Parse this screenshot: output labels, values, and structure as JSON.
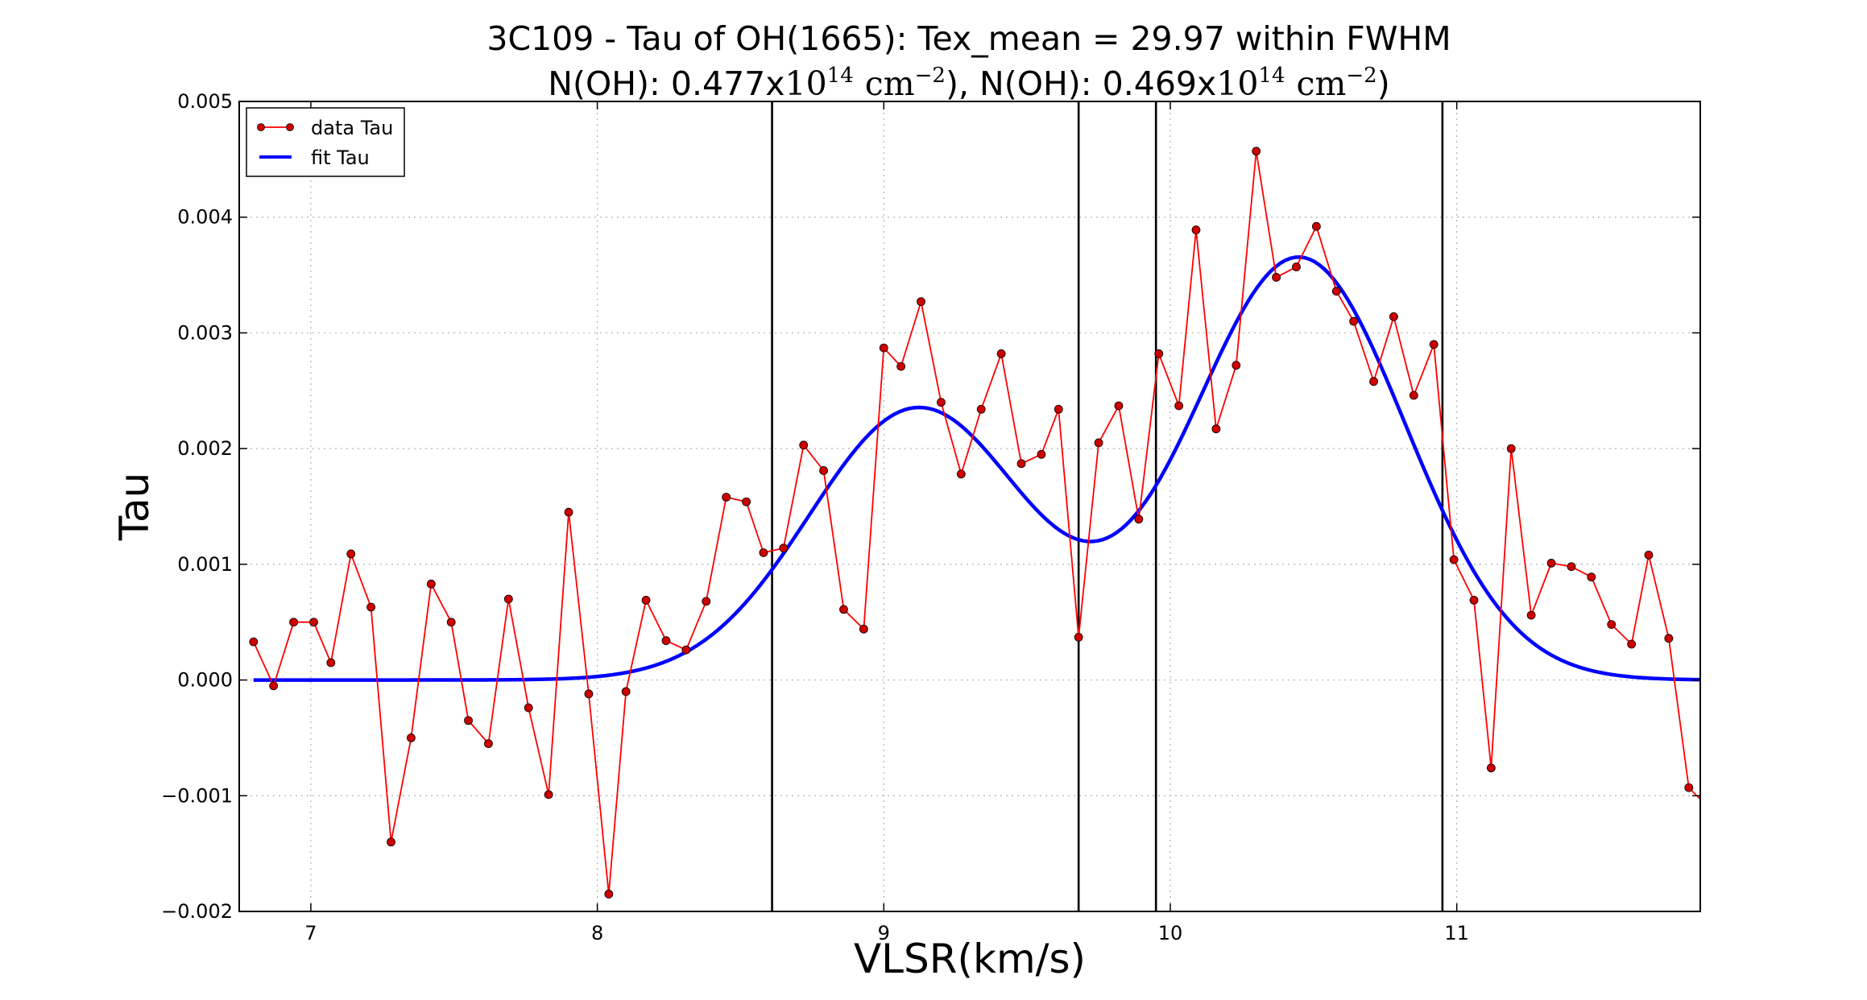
{
  "chart_data": {
    "type": "line",
    "title_line1": "3C109 - Tau of OH(1665): Tex_mean = 29.97 within FWHM",
    "title_line2": {
      "prefix": "N(OH): 0.477x",
      "base1": "10",
      "exp1": "14",
      "unit1": "cm",
      "unit_exp1": "−2",
      "middle": "), N(OH): 0.469x",
      "base2": "10",
      "exp2": "14",
      "unit2": "cm",
      "unit_exp2": "−2",
      "suffix": ")"
    },
    "xlabel": "VLSR(km/s)",
    "ylabel": "Tau",
    "xlim": [
      6.75,
      11.85
    ],
    "ylim": [
      -0.002,
      0.005
    ],
    "xticks": [
      7,
      8,
      9,
      10,
      11
    ],
    "xtick_labels": [
      "7",
      "8",
      "9",
      "10",
      "11"
    ],
    "yticks": [
      -0.002,
      -0.001,
      0.0,
      0.001,
      0.002,
      0.003,
      0.004,
      0.005
    ],
    "ytick_labels": [
      "−0.002",
      "−0.001",
      "0.000",
      "0.001",
      "0.002",
      "0.003",
      "0.004",
      "0.005"
    ],
    "grid": true,
    "legend_position": "top-left",
    "vertical_lines": [
      8.61,
      9.68,
      9.95,
      10.95
    ],
    "series": [
      {
        "name": "data Tau",
        "style": "line-with-markers",
        "color": "#ff0000",
        "marker_color": "#cc0000",
        "x": [
          6.8,
          6.87,
          6.94,
          7.01,
          7.07,
          7.14,
          7.21,
          7.28,
          7.35,
          7.42,
          7.49,
          7.55,
          7.62,
          7.69,
          7.76,
          7.83,
          7.9,
          7.97,
          8.04,
          8.1,
          8.17,
          8.24,
          8.31,
          8.38,
          8.45,
          8.52,
          8.58,
          8.65,
          8.72,
          8.79,
          8.86,
          8.93,
          9.0,
          9.06,
          9.13,
          9.2,
          9.27,
          9.34,
          9.41,
          9.48,
          9.55,
          9.61,
          9.68,
          9.75,
          9.82,
          9.89,
          9.96,
          10.03,
          10.09,
          10.16,
          10.23,
          10.3,
          10.37,
          10.44,
          10.51,
          10.58,
          10.64,
          10.71,
          10.78,
          10.85,
          10.92,
          10.99,
          11.06,
          11.12,
          11.19,
          11.26,
          11.33,
          11.4,
          11.47,
          11.54,
          11.61,
          11.67,
          11.74,
          11.81,
          11.85
        ],
        "y": [
          0.00033,
          -5e-05,
          0.0005,
          0.0005,
          0.00015,
          0.00109,
          0.00063,
          -0.0014,
          -0.0005,
          0.00083,
          0.0005,
          -0.00035,
          -0.00055,
          0.0007,
          -0.00024,
          -0.00099,
          0.00145,
          -0.00012,
          -0.00185,
          -0.0001,
          0.00069,
          0.00034,
          0.00026,
          0.00068,
          0.00158,
          0.00154,
          0.0011,
          0.00114,
          0.00203,
          0.00181,
          0.00061,
          0.00044,
          0.00287,
          0.00271,
          0.00327,
          0.0024,
          0.00178,
          0.00234,
          0.00282,
          0.00187,
          0.00195,
          0.00234,
          0.00037,
          0.00205,
          0.00237,
          0.00139,
          0.00282,
          0.00237,
          0.00389,
          0.00217,
          0.00272,
          0.00457,
          0.00348,
          0.00357,
          0.00392,
          0.00336,
          0.0031,
          0.00258,
          0.00314,
          0.00246,
          0.0029,
          0.00104,
          0.00069,
          -0.00076,
          0.002,
          0.00056,
          0.00101,
          0.00098,
          0.00089,
          0.00048,
          0.00031,
          0.00108,
          0.00036,
          -0.00093,
          -0.00103
        ]
      },
      {
        "name": "fit Tau",
        "style": "line",
        "color": "#0000ff",
        "components": [
          {
            "amplitude": 0.00235,
            "center": 9.12,
            "sigma": 0.38
          },
          {
            "amplitude": 0.00365,
            "center": 10.45,
            "sigma": 0.37
          }
        ],
        "x_range": [
          6.8,
          11.85
        ]
      }
    ]
  }
}
